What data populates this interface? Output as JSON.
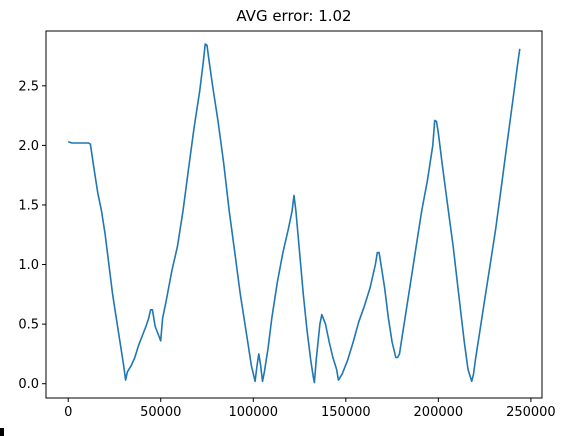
{
  "chart_data": {
    "type": "line",
    "title": "AVG error: 1.02",
    "xlabel": "",
    "ylabel": "",
    "xlim": [
      -12000,
      256000
    ],
    "ylim": [
      -0.12,
      2.96
    ],
    "xticks": [
      0,
      50000,
      100000,
      150000,
      200000,
      250000
    ],
    "xtick_labels": [
      "0",
      "50000",
      "100000",
      "150000",
      "200000",
      "250000"
    ],
    "yticks": [
      0.0,
      0.5,
      1.0,
      1.5,
      2.0,
      2.5
    ],
    "ytick_labels": [
      "0.0",
      "0.5",
      "1.0",
      "1.5",
      "2.0",
      "2.5"
    ],
    "grid": false,
    "series": [
      {
        "color": "#1f77b4",
        "x": [
          0,
          2000,
          4000,
          6000,
          8000,
          10000,
          11000,
          12000,
          14000,
          16000,
          18000,
          20000,
          22000,
          24000,
          26000,
          28000,
          30000,
          31000,
          32000,
          34000,
          36000,
          38000,
          40000,
          42000,
          43500,
          44500,
          45500,
          47000,
          49000,
          50000,
          51000,
          53000,
          56000,
          59000,
          62000,
          65000,
          68000,
          71000,
          73000,
          74000,
          75000,
          76000,
          78000,
          81000,
          84000,
          87000,
          90000,
          93000,
          96000,
          99000,
          101000,
          102000,
          103000,
          104000,
          105000,
          106000,
          108000,
          110000,
          113000,
          116000,
          119000,
          121000,
          122000,
          123000,
          125000,
          127000,
          129000,
          131000,
          132500,
          133000,
          134000,
          136000,
          137000,
          139000,
          141000,
          143000,
          145000,
          146000,
          148000,
          151000,
          154000,
          157000,
          160000,
          163000,
          166000,
          167000,
          168000,
          169000,
          171000,
          173000,
          175000,
          177000,
          178000,
          179000,
          180000,
          182000,
          185000,
          188000,
          191000,
          194000,
          197000,
          198000,
          199000,
          200000,
          202000,
          205000,
          208000,
          211000,
          214000,
          216000,
          218000,
          219000,
          220000,
          222000,
          225000,
          228000,
          231000,
          234000,
          237000,
          240000,
          243000,
          244000
        ],
        "y": [
          2.03,
          2.02,
          2.02,
          2.02,
          2.02,
          2.02,
          2.02,
          2.01,
          1.8,
          1.6,
          1.45,
          1.25,
          1.0,
          0.75,
          0.55,
          0.35,
          0.15,
          0.03,
          0.1,
          0.15,
          0.22,
          0.32,
          0.4,
          0.48,
          0.55,
          0.62,
          0.62,
          0.48,
          0.4,
          0.36,
          0.55,
          0.7,
          0.95,
          1.15,
          1.45,
          1.8,
          2.15,
          2.45,
          2.7,
          2.85,
          2.84,
          2.72,
          2.5,
          2.2,
          1.85,
          1.45,
          1.1,
          0.75,
          0.45,
          0.15,
          0.02,
          0.15,
          0.25,
          0.15,
          0.02,
          0.1,
          0.3,
          0.55,
          0.85,
          1.1,
          1.3,
          1.45,
          1.58,
          1.45,
          1.1,
          0.75,
          0.45,
          0.2,
          0.05,
          0.01,
          0.2,
          0.5,
          0.58,
          0.5,
          0.35,
          0.22,
          0.12,
          0.03,
          0.08,
          0.2,
          0.35,
          0.52,
          0.65,
          0.8,
          1.0,
          1.1,
          1.1,
          1.0,
          0.8,
          0.55,
          0.35,
          0.22,
          0.22,
          0.25,
          0.35,
          0.55,
          0.85,
          1.15,
          1.45,
          1.7,
          2.0,
          2.21,
          2.2,
          2.1,
          1.85,
          1.5,
          1.15,
          0.75,
          0.35,
          0.12,
          0.02,
          0.08,
          0.2,
          0.4,
          0.7,
          1.0,
          1.3,
          1.65,
          2.0,
          2.35,
          2.7,
          2.81
        ]
      }
    ]
  }
}
